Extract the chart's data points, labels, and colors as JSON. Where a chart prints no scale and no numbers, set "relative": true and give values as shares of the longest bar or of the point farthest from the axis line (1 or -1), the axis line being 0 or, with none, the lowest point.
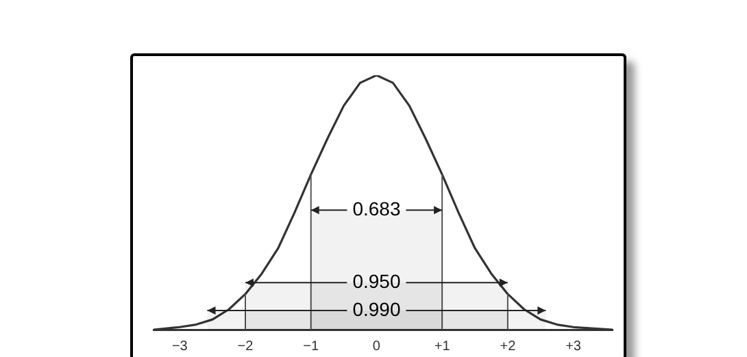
{
  "chart_data": {
    "type": "line",
    "relative": true,
    "grid": false,
    "legend": false,
    "marker": "none",
    "line_style": "solid",
    "x": [
      -3.4,
      -3,
      -2.75,
      -2.5,
      -2.25,
      -2,
      -1.75,
      -1.5,
      -1.25,
      -1,
      -0.75,
      -0.5,
      -0.25,
      0,
      0.25,
      0.5,
      0.75,
      1,
      1.25,
      1.5,
      1.75,
      2,
      2.25,
      2.5,
      2.75,
      3,
      3.6
    ],
    "series": [
      {
        "color": "#333333",
        "values": [
          0,
          0.01,
          0.02,
          0.04,
          0.08,
          0.14,
          0.22,
          0.32,
          0.46,
          0.61,
          0.75,
          0.88,
          0.97,
          1,
          0.97,
          0.88,
          0.75,
          0.61,
          0.46,
          0.32,
          0.22,
          0.14,
          0.08,
          0.04,
          0.02,
          0.01,
          0
        ]
      }
    ],
    "xlim": [
      -3.4,
      3.6
    ],
    "xticks": [
      {
        "value": -3,
        "label": "−3"
      },
      {
        "value": -2,
        "label": "−2"
      },
      {
        "value": -1,
        "label": "−1"
      },
      0,
      {
        "value": 1,
        "label": "+1"
      },
      {
        "value": 2,
        "label": "+2"
      },
      {
        "value": 3,
        "label": "+3"
      }
    ],
    "ref_lines": [
      {
        "axis": "x",
        "value": -1,
        "color": "#555555"
      },
      {
        "axis": "x",
        "value": 1,
        "color": "#555555"
      },
      {
        "axis": "x",
        "value": -2,
        "color": "#555555"
      },
      {
        "axis": "x",
        "value": 2,
        "color": "#555555"
      }
    ],
    "bands": [
      {
        "axis": "x",
        "from": -1,
        "to": 1,
        "label": "0.683"
      },
      {
        "axis": "x",
        "from": -2,
        "to": 2,
        "label": "0.950"
      },
      {
        "axis": "x",
        "from": -2.58,
        "to": 2.58,
        "label": "0.990"
      }
    ]
  }
}
